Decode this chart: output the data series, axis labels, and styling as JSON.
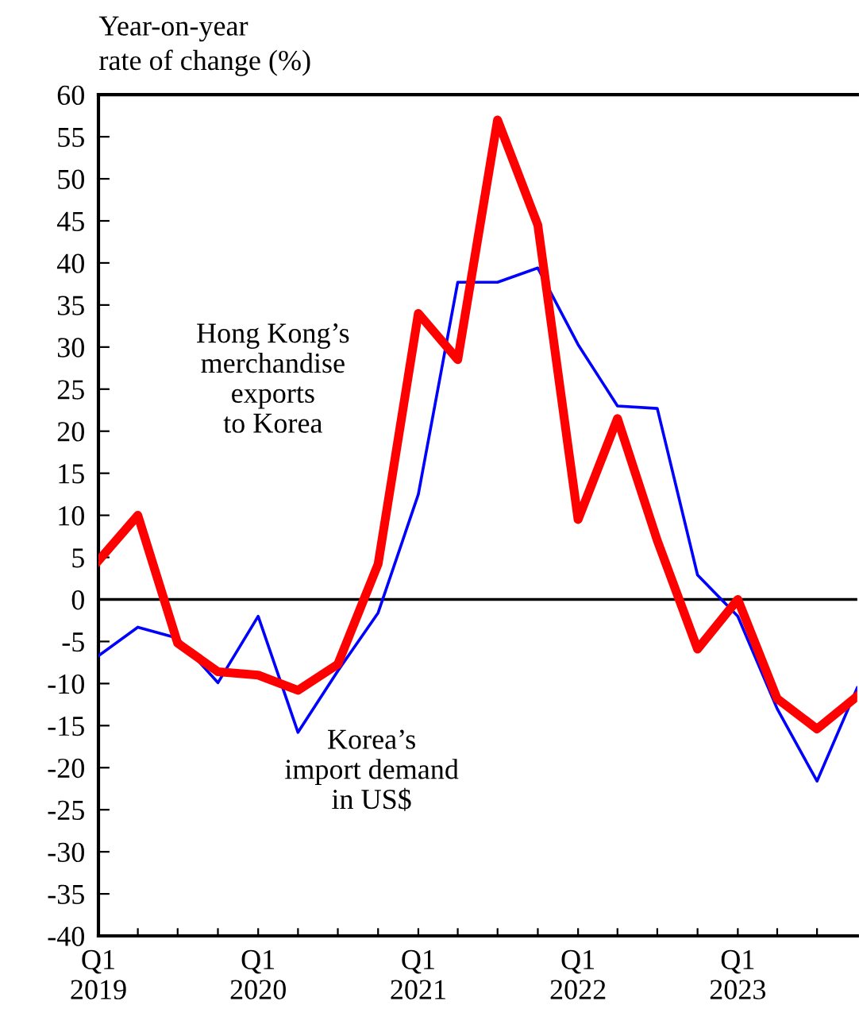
{
  "chart_data": {
    "type": "line",
    "ylabel": "Year-on-year\nrate of change (%)",
    "x": [
      "2019-01",
      "2019-04",
      "2019-07",
      "2019-10",
      "2020-01",
      "2020-04",
      "2020-07",
      "2020-10",
      "2021-01",
      "2021-04",
      "2021-07",
      "2021-10",
      "2022-01",
      "2022-04",
      "2022-07",
      "2022-10",
      "2023-01",
      "2023-04",
      "2023-07",
      "2023-10"
    ],
    "series": [
      {
        "name": "Korea’s\nimport demand\nin US$",
        "color": "#0000ff",
        "values": [
          -6.7,
          -3.3,
          -4.6,
          -9.9,
          -2,
          -15.8,
          -8.5,
          -1.6,
          12.5,
          37.7,
          37.7,
          39.4,
          30.3,
          23,
          22.7,
          2.9,
          -2,
          -13,
          -21.6,
          -10.5
        ]
      },
      {
        "name": "Hong Kong’s\nmerchandise\nexports\nto Korea",
        "color": "#ff0000",
        "values": [
          4.6,
          10,
          -5.2,
          -8.6,
          -9,
          -10.8,
          -7.7,
          4.2,
          34,
          28.5,
          57,
          44.5,
          9.5,
          21.5,
          7,
          -5.9,
          0,
          -11.8,
          -15.4,
          -11.5
        ]
      }
    ],
    "xlim": [
      "2019-01",
      "2023-10"
    ],
    "xticks": [
      {
        "value": "2019-01",
        "label": "Q1\n2019"
      },
      {
        "value": "2019-04",
        "label": null
      },
      {
        "value": "2019-07",
        "label": null
      },
      {
        "value": "2019-10",
        "label": null
      },
      {
        "value": "2020-01",
        "label": "Q1\n2020"
      },
      {
        "value": "2020-04",
        "label": null
      },
      {
        "value": "2020-07",
        "label": null
      },
      {
        "value": "2020-10",
        "label": null
      },
      {
        "value": "2021-01",
        "label": "Q1\n2021"
      },
      {
        "value": "2021-04",
        "label": null
      },
      {
        "value": "2021-07",
        "label": null
      },
      {
        "value": "2021-10",
        "label": null
      },
      {
        "value": "2022-01",
        "label": "Q1\n2022"
      },
      {
        "value": "2022-04",
        "label": null
      },
      {
        "value": "2022-07",
        "label": null
      },
      {
        "value": "2022-10",
        "label": null
      },
      {
        "value": "2023-01",
        "label": "Q1\n2023"
      },
      {
        "value": "2023-04",
        "label": null
      },
      {
        "value": "2023-07",
        "label": null
      }
    ],
    "ylim": [
      -40,
      60
    ],
    "yticks": [
      -40,
      -35,
      -30,
      -25,
      -20,
      -15,
      -10,
      -5,
      0,
      5,
      10,
      15,
      20,
      25,
      30,
      35,
      40,
      45,
      50,
      55,
      60
    ],
    "ref_lines": [
      {
        "axis": "y",
        "value": 0,
        "color": "#000000"
      }
    ],
    "line_style": "solid",
    "marker": "none",
    "grid": false,
    "legend": false
  }
}
